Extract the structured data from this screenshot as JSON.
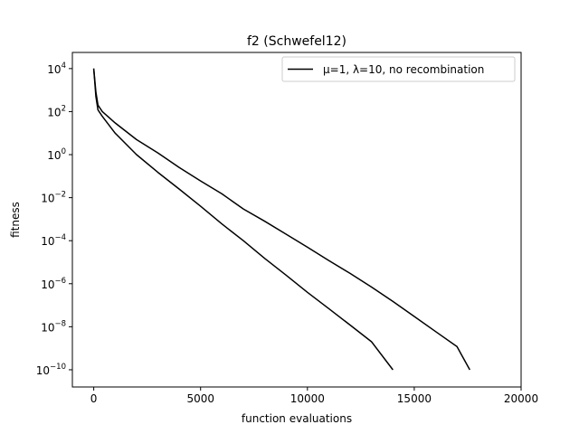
{
  "chart_data": {
    "type": "line",
    "title": "f2 (Schwefel12)",
    "xlabel": "function evaluations",
    "ylabel": "fitness",
    "xlim": [
      -1000,
      20000
    ],
    "ylim_log10": [
      -10.8,
      4.75
    ],
    "y_scale": "log",
    "grid": false,
    "legend_position": "top-right",
    "x_ticks": [
      0,
      5000,
      10000,
      15000,
      20000
    ],
    "x_tick_labels": [
      "0",
      "5000",
      "10000",
      "15000",
      "20000"
    ],
    "y_tick_exponents": [
      4,
      2,
      0,
      -2,
      -4,
      -6,
      -8,
      -10
    ],
    "y_tick_base": "10",
    "line_color": "#000000",
    "series": [
      {
        "name": "μ=1, λ=10, no recombination",
        "x": [
          0,
          100,
          200,
          400,
          1000,
          2000,
          3000,
          4000,
          5000,
          6000,
          7000,
          8000,
          9000,
          10000,
          11000,
          12000,
          13000,
          14000
        ],
        "y": [
          10000,
          500,
          120,
          60,
          10,
          1.0,
          0.15,
          0.025,
          0.004,
          0.0006,
          0.0001,
          1.5e-05,
          2.5e-06,
          4e-07,
          7e-08,
          1.2e-08,
          2e-09,
          1e-10
        ]
      },
      {
        "name": "",
        "x": [
          0,
          100,
          200,
          400,
          1000,
          2000,
          3000,
          4000,
          5000,
          6000,
          7000,
          8000,
          9000,
          10000,
          11000,
          12000,
          13000,
          14000,
          15000,
          16000,
          17000,
          17600
        ],
        "y": [
          10000,
          800,
          200,
          100,
          30,
          5,
          1.2,
          0.25,
          0.06,
          0.015,
          0.003,
          0.0008,
          0.0002,
          5e-05,
          1.2e-05,
          3e-06,
          7e-07,
          1.5e-07,
          3e-08,
          6e-09,
          1.2e-09,
          1e-10
        ]
      }
    ]
  }
}
